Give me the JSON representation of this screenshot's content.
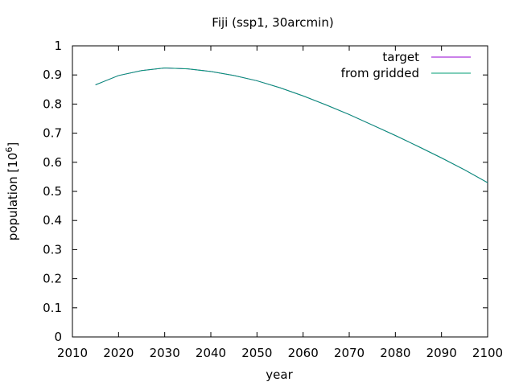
{
  "chart_data": {
    "type": "line",
    "title": "Fiji (ssp1, 30arcmin)",
    "xlabel": "year",
    "ylabel_main": "population [10",
    "ylabel_sup": "6",
    "ylabel_close": "]",
    "xlim": [
      2010,
      2100
    ],
    "ylim": [
      0,
      1
    ],
    "xticks": [
      2010,
      2020,
      2030,
      2040,
      2050,
      2060,
      2070,
      2080,
      2090,
      2100
    ],
    "yticks": [
      0,
      0.1,
      0.2,
      0.3,
      0.4,
      0.5,
      0.6,
      0.7,
      0.8,
      0.9,
      1
    ],
    "ytick_labels": [
      "0",
      "0.1",
      "0.2",
      "0.3",
      "0.4",
      "0.5",
      "0.6",
      "0.7",
      "0.8",
      "0.9",
      "1"
    ],
    "grid": false,
    "legend_position": "top-right",
    "series": [
      {
        "name": "target",
        "color": "#9400d3",
        "x": [
          2015,
          2020,
          2025,
          2030,
          2035,
          2040,
          2045,
          2050,
          2055,
          2060,
          2065,
          2070,
          2075,
          2080,
          2085,
          2090,
          2095,
          2100
        ],
        "y": [
          0.866,
          0.898,
          0.915,
          0.924,
          0.921,
          0.912,
          0.898,
          0.88,
          0.856,
          0.828,
          0.797,
          0.764,
          0.728,
          0.692,
          0.654,
          0.615,
          0.574,
          0.53
        ]
      },
      {
        "name": "from gridded",
        "color": "#009e73",
        "x": [
          2015,
          2020,
          2025,
          2030,
          2035,
          2040,
          2045,
          2050,
          2055,
          2060,
          2065,
          2070,
          2075,
          2080,
          2085,
          2090,
          2095,
          2100
        ],
        "y": [
          0.866,
          0.898,
          0.915,
          0.924,
          0.921,
          0.912,
          0.898,
          0.88,
          0.856,
          0.828,
          0.797,
          0.764,
          0.728,
          0.692,
          0.654,
          0.615,
          0.574,
          0.53
        ]
      }
    ]
  }
}
